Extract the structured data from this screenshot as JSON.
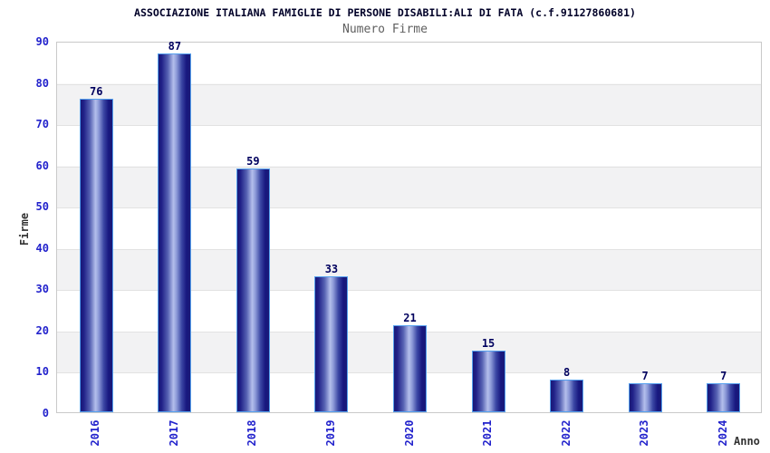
{
  "chart_data": {
    "type": "bar",
    "title": "ASSOCIAZIONE ITALIANA FAMIGLIE DI PERSONE DISABILI:ALI DI FATA (c.f.91127860681)",
    "subtitle": "Numero Firme",
    "xlabel": "Anno",
    "ylabel": "Firme",
    "categories": [
      "2016",
      "2017",
      "2018",
      "2019",
      "2020",
      "2021",
      "2022",
      "2023",
      "2024"
    ],
    "values": [
      76,
      87,
      59,
      33,
      21,
      15,
      8,
      7,
      7
    ],
    "ylim": [
      0,
      90
    ],
    "ytick_step": 10,
    "yticks": [
      0,
      10,
      20,
      30,
      40,
      50,
      60,
      70,
      80,
      90
    ],
    "grid": "horizontal gridlines every 10 with alternating white/light-gray bands",
    "legend": "none",
    "bar_value_labels_shown": true,
    "x_tick_label_rotation_degrees": -90
  },
  "colors": {
    "background": "#ffffff",
    "title_text": "#000028",
    "subtitle_text": "#5f5f5f",
    "axis_title_text": "#333333",
    "tick_label_text": "#2222cc",
    "bar_value_label_text": "#00005e",
    "bar_dark_edge": "#191977",
    "bar_light_center": "#b4bfec",
    "bar_border": "#55a0ee",
    "band_gray": "#f2f2f3",
    "gridline": "#e2e2e2",
    "plot_border": "#c9c9c9"
  }
}
